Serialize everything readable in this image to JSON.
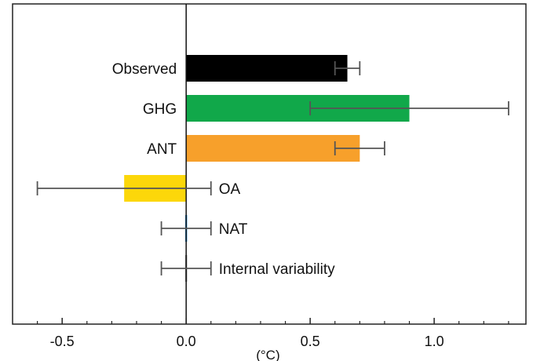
{
  "chart_data": {
    "type": "bar",
    "orientation": "horizontal",
    "title": "",
    "xlabel": "(°C)",
    "ylabel": "",
    "xlim": [
      -0.7,
      1.37
    ],
    "x_ticks": [
      -0.5,
      0.0,
      0.5,
      1.0
    ],
    "x_tick_labels": [
      "-0.5",
      "0.0",
      "0.5",
      "1.0"
    ],
    "grid": false,
    "legend": "none",
    "bars": [
      {
        "label": "Observed",
        "value": 0.65,
        "error_low": 0.6,
        "error_high": 0.7,
        "color": "#000000",
        "label_side": "left"
      },
      {
        "label": "GHG",
        "value": 0.9,
        "error_low": 0.5,
        "error_high": 1.3,
        "color": "#11a84a",
        "label_side": "left"
      },
      {
        "label": "ANT",
        "value": 0.7,
        "error_low": 0.6,
        "error_high": 0.8,
        "color": "#f7a02b",
        "label_side": "left"
      },
      {
        "label": "OA",
        "value": -0.25,
        "error_low": -0.6,
        "error_high": 0.1,
        "color": "#fcd70a",
        "label_side": "right"
      },
      {
        "label": "NAT",
        "value": 0.0,
        "error_low": -0.1,
        "error_high": 0.1,
        "color": "#2a8fd6",
        "label_side": "right"
      },
      {
        "label": "Internal variability",
        "value": 0.0,
        "error_low": -0.1,
        "error_high": 0.1,
        "color": "#888888",
        "label_side": "right"
      }
    ]
  }
}
